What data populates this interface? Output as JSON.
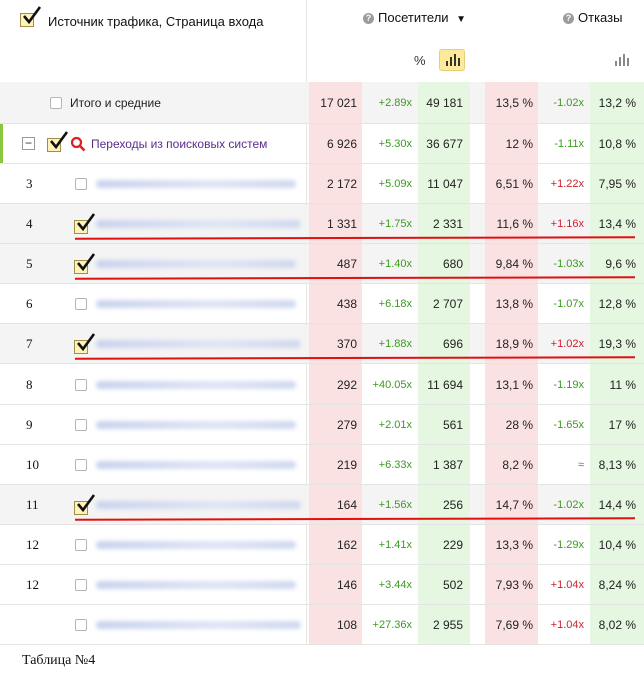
{
  "header": {
    "title": "Источник трафика, Страница входа",
    "col_visitors": "Посетители",
    "visitors_arrow": "▼",
    "col_bounce": "Отказы",
    "percent_toggle": "%"
  },
  "totals": {
    "label": "Итого и средние",
    "visitors": "17 021",
    "visitors_ratio": "+2.89x",
    "col3": "49 181",
    "bounce": "13,5 %",
    "bounce_ratio": "-1.02x",
    "col6": "13,2 %"
  },
  "group": {
    "label": "Переходы из поисковых систем",
    "visitors": "6 926",
    "visitors_ratio": "+5.30x",
    "col3": "36 677",
    "bounce": "12 %",
    "bounce_ratio": "-1.11x",
    "col6": "10,8 %"
  },
  "rows": [
    {
      "idx": "3",
      "checked": false,
      "underline": false,
      "visitors": "2 172",
      "visitors_ratio": "+5.09x",
      "col3": "11 047",
      "bounce": "6,51 %",
      "bounce_ratio": "+1.22x",
      "bounce_ratio_type": "neg",
      "col6": "7,95 %"
    },
    {
      "idx": "4",
      "checked": true,
      "underline": true,
      "visitors": "1 331",
      "visitors_ratio": "+1.75x",
      "col3": "2 331",
      "bounce": "11,6 %",
      "bounce_ratio": "+1.16x",
      "bounce_ratio_type": "neg",
      "col6": "13,4 %"
    },
    {
      "idx": "5",
      "checked": true,
      "underline": true,
      "visitors": "487",
      "visitors_ratio": "+1.40x",
      "col3": "680",
      "bounce": "9,84 %",
      "bounce_ratio": "-1.03x",
      "bounce_ratio_type": "pos",
      "col6": "9,6 %"
    },
    {
      "idx": "6",
      "checked": false,
      "underline": false,
      "visitors": "438",
      "visitors_ratio": "+6.18x",
      "col3": "2 707",
      "bounce": "13,8 %",
      "bounce_ratio": "-1.07x",
      "bounce_ratio_type": "pos",
      "col6": "12,8 %"
    },
    {
      "idx": "7",
      "checked": true,
      "underline": true,
      "visitors": "370",
      "visitors_ratio": "+1.88x",
      "col3": "696",
      "bounce": "18,9 %",
      "bounce_ratio": "+1.02x",
      "bounce_ratio_type": "neg",
      "col6": "19,3 %"
    },
    {
      "idx": "8",
      "checked": false,
      "underline": false,
      "visitors": "292",
      "visitors_ratio": "+40.05x",
      "col3": "11 694",
      "bounce": "13,1 %",
      "bounce_ratio": "-1.19x",
      "bounce_ratio_type": "pos",
      "col6": "11 %"
    },
    {
      "idx": "9",
      "checked": false,
      "underline": false,
      "visitors": "279",
      "visitors_ratio": "+2.01x",
      "col3": "561",
      "bounce": "28 %",
      "bounce_ratio": "-1.65x",
      "bounce_ratio_type": "pos",
      "col6": "17 %"
    },
    {
      "idx": "10",
      "checked": false,
      "underline": false,
      "visitors": "219",
      "visitors_ratio": "+6.33x",
      "col3": "1 387",
      "bounce": "8,2 %",
      "bounce_ratio": "≈",
      "bounce_ratio_type": "pos",
      "col6": "8,13 %"
    },
    {
      "idx": "11",
      "checked": true,
      "underline": true,
      "visitors": "164",
      "visitors_ratio": "+1.56x",
      "col3": "256",
      "bounce": "14,7 %",
      "bounce_ratio": "-1.02x",
      "bounce_ratio_type": "pos",
      "col6": "14,4 %"
    },
    {
      "idx": "12",
      "checked": false,
      "underline": false,
      "visitors": "162",
      "visitors_ratio": "+1.41x",
      "col3": "229",
      "bounce": "13,3 %",
      "bounce_ratio": "-1.29x",
      "bounce_ratio_type": "pos",
      "col6": "10,4 %"
    },
    {
      "idx": "12",
      "checked": false,
      "underline": false,
      "visitors": "146",
      "visitors_ratio": "+3.44x",
      "col3": "502",
      "bounce": "7,93 %",
      "bounce_ratio": "+1.04x",
      "bounce_ratio_type": "neg",
      "col6": "8,24 %"
    },
    {
      "idx": "",
      "checked": false,
      "underline": false,
      "visitors": "108",
      "visitors_ratio": "+27.36x",
      "col3": "2 955",
      "bounce": "7,69 %",
      "bounce_ratio": "+1.04x",
      "bounce_ratio_type": "neg",
      "col6": "8,02 %"
    }
  ],
  "caption": "Таблица №4"
}
